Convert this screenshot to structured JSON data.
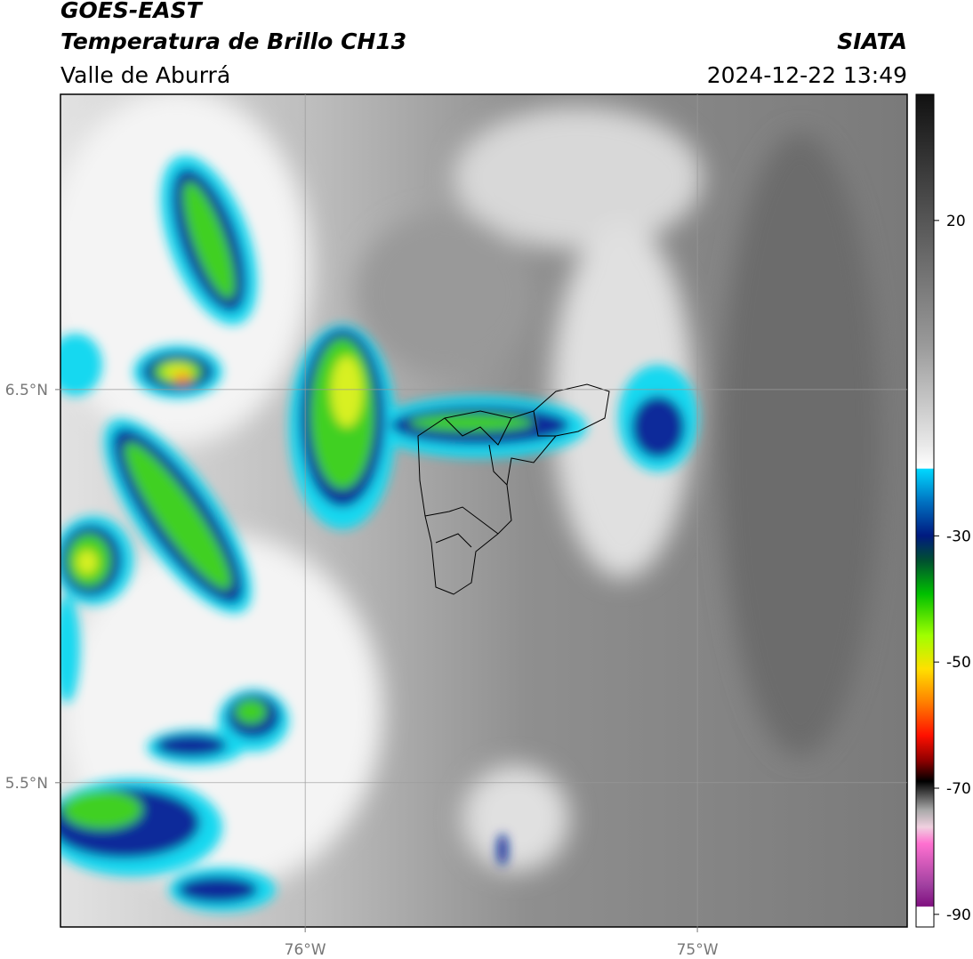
{
  "header": {
    "title": "GOES-EAST",
    "subtitle": "Temperatura de Brillo CH13",
    "region": "Valle de Aburrá",
    "source": "SIATA",
    "datetime": "2024-12-22 13:49"
  },
  "map": {
    "xlim": [
      -76.624,
      -74.465
    ],
    "ylim": [
      5.133,
      7.251
    ],
    "xticks": [
      {
        "value": -76,
        "label": "76°W"
      },
      {
        "value": -75,
        "label": "75°W"
      }
    ],
    "yticks": [
      {
        "value": 6.5,
        "label": "6.5°N"
      },
      {
        "value": 5.5,
        "label": "5.5°N"
      }
    ],
    "grid": true
  },
  "colorbar": {
    "clim": [
      -92,
      40
    ],
    "ticks": [
      20,
      -30,
      -50,
      -70,
      -90
    ]
  }
}
